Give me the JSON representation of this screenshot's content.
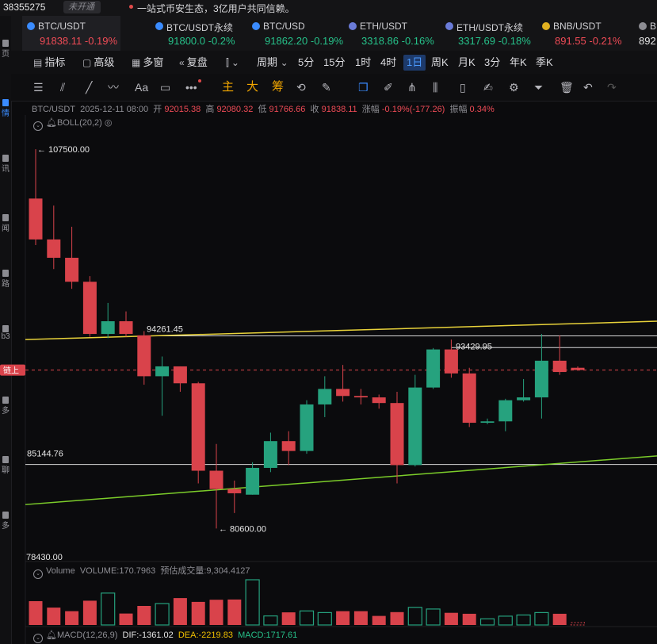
{
  "topbar": {
    "number": "38355275",
    "badge": "未开通",
    "notice": "一站式币安生态，3亿用户共同信赖。"
  },
  "leftbar": {
    "items": [
      {
        "label": "页"
      },
      {
        "label": "情"
      },
      {
        "label": "讯"
      },
      {
        "label": "闻"
      },
      {
        "label": "路"
      },
      {
        "label": "b3"
      },
      {
        "label": "链上"
      },
      {
        "label": "多"
      },
      {
        "label": "聊"
      },
      {
        "label": "多"
      }
    ]
  },
  "tabs": [
    {
      "name": "BTC/USDT",
      "price": "91838.11",
      "change": "-0.19%",
      "dir": "red",
      "active": true
    },
    {
      "name": "BTC/USDT永续",
      "price": "91800.0",
      "change": "-0.2%",
      "dir": "green"
    },
    {
      "name": "BTC/USD",
      "price": "91862.20",
      "change": "-0.19%",
      "dir": "green"
    },
    {
      "name": "ETH/USDT",
      "price": "3318.86",
      "change": "-0.16%",
      "dir": "green"
    },
    {
      "name": "ETH/USDT永续",
      "price": "3317.69",
      "change": "-0.18%",
      "dir": "green"
    },
    {
      "name": "BNB/USDT",
      "price": "891.55",
      "change": "-0.21%",
      "dir": "red"
    },
    {
      "name": "B",
      "price": "892",
      "change": "",
      "dir": "white"
    }
  ],
  "periods": {
    "indicator": "指标",
    "advanced": "高级",
    "multi": "多窗",
    "replay": "复盘",
    "cycle": "周期",
    "list": [
      "5分",
      "15分",
      "1时",
      "4时",
      "1日",
      "周K",
      "月K",
      "3分",
      "年K",
      "季K"
    ],
    "selected": "1日"
  },
  "drawtools": {
    "main": "主",
    "big": "大",
    "chip": "筹",
    "text_tool": "Aa"
  },
  "info": {
    "symbol": "BTC/USDT",
    "datetime": "2025-12-11 08:00",
    "open_label": "开",
    "open": "92015.38",
    "high_label": "高",
    "high": "92080.32",
    "low_label": "低",
    "low": "91766.66",
    "close_label": "收",
    "close": "91838.11",
    "chg_label": "涨幅",
    "chg": "-0.19%(-177.26)",
    "amp_label": "振幅",
    "amp": "0.34%"
  },
  "boll": {
    "label": "BOLL(20,2)"
  },
  "chart_data": {
    "type": "candlestick",
    "ylim": [
      78430,
      108800
    ],
    "up_color": "#26a27e",
    "down_color": "#d9434b",
    "candles": [
      {
        "o": 104000,
        "h": 107500,
        "l": 100700,
        "c": 101100
      },
      {
        "o": 101100,
        "h": 103500,
        "l": 99000,
        "c": 99800
      },
      {
        "o": 99800,
        "h": 102000,
        "l": 97600,
        "c": 98100
      },
      {
        "o": 98100,
        "h": 98500,
        "l": 94200,
        "c": 94400
      },
      {
        "o": 94400,
        "h": 96600,
        "l": 94100,
        "c": 95300
      },
      {
        "o": 95300,
        "h": 96000,
        "l": 94200,
        "c": 94400
      },
      {
        "o": 94300,
        "h": 94600,
        "l": 90800,
        "c": 91400
      },
      {
        "o": 91400,
        "h": 92800,
        "l": 88600,
        "c": 92100
      },
      {
        "o": 92100,
        "h": 92100,
        "l": 90300,
        "c": 90900
      },
      {
        "o": 90900,
        "h": 91000,
        "l": 83800,
        "c": 84700
      },
      {
        "o": 84700,
        "h": 86600,
        "l": 80600,
        "c": 83400
      },
      {
        "o": 83400,
        "h": 84000,
        "l": 81700,
        "c": 83100
      },
      {
        "o": 83000,
        "h": 85300,
        "l": 83000,
        "c": 84900
      },
      {
        "o": 84900,
        "h": 87400,
        "l": 84600,
        "c": 86800
      },
      {
        "o": 86800,
        "h": 87500,
        "l": 85100,
        "c": 86100
      },
      {
        "o": 86100,
        "h": 89700,
        "l": 85900,
        "c": 89400
      },
      {
        "o": 89400,
        "h": 91400,
        "l": 88500,
        "c": 90500
      },
      {
        "o": 90500,
        "h": 92200,
        "l": 89600,
        "c": 90000
      },
      {
        "o": 90000,
        "h": 90500,
        "l": 89400,
        "c": 89900
      },
      {
        "o": 89900,
        "h": 90100,
        "l": 89100,
        "c": 89500
      },
      {
        "o": 89500,
        "h": 90300,
        "l": 83800,
        "c": 85100
      },
      {
        "o": 85100,
        "h": 91500,
        "l": 85000,
        "c": 90600
      },
      {
        "o": 90600,
        "h": 93400,
        "l": 90500,
        "c": 93300
      },
      {
        "o": 93300,
        "h": 94000,
        "l": 91300,
        "c": 91600
      },
      {
        "o": 91600,
        "h": 92000,
        "l": 87800,
        "c": 88100
      },
      {
        "o": 88100,
        "h": 88400,
        "l": 88000,
        "c": 88200
      },
      {
        "o": 88200,
        "h": 89800,
        "l": 87500,
        "c": 89700
      },
      {
        "o": 89700,
        "h": 91200,
        "l": 89600,
        "c": 89900
      },
      {
        "o": 89900,
        "h": 94400,
        "l": 88400,
        "c": 92500
      },
      {
        "o": 92500,
        "h": 94300,
        "l": 91500,
        "c": 91700
      },
      {
        "o": 92000,
        "h": 92100,
        "l": 91800,
        "c": 91840
      }
    ],
    "volumes": [
      1.0,
      0.73,
      0.58,
      1.02,
      1.34,
      0.48,
      0.8,
      0.9,
      1.13,
      0.97,
      1.06,
      1.07,
      1.9,
      0.38,
      0.53,
      0.59,
      0.52,
      0.58,
      0.58,
      0.38,
      0.54,
      0.74,
      0.67,
      0.51,
      0.47,
      0.26,
      0.37,
      0.42,
      0.52,
      0.47,
      0.1
    ],
    "price_labels": [
      {
        "text": "← 107500.00",
        "value": 107500
      },
      {
        "text": "← 80600.00",
        "value": 80600
      },
      {
        "text": "94261.45",
        "value": 94261.45
      },
      {
        "text": "93429.95",
        "value": 93429.95
      }
    ],
    "h_lines": [
      94261.45,
      93429.95,
      85144.76
    ],
    "h_line_label": "85144.76",
    "current_price": 91838.11,
    "current_price_label": "链上",
    "bottom_axis_label": "78430.00",
    "trend_lines": [
      {
        "color": "#e8d23a",
        "from": 94000,
        "to": 95300
      },
      {
        "color": "#7ccd2a",
        "from": 82300,
        "to": 85750
      }
    ]
  },
  "volume": {
    "label": "Volume",
    "value_text": "VOLUME:170.7963",
    "est_text": "预估成交量:9,304.4127"
  },
  "macd": {
    "label": "MACD(12,26,9)",
    "dif": "DIF:-1361.02",
    "dea": "DEA:-2219.83",
    "macd": "MACD:1717.61"
  }
}
